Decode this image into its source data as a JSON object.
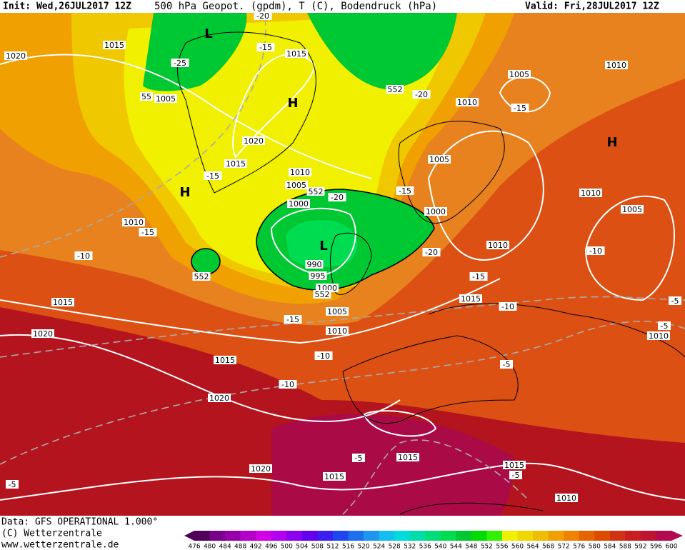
{
  "header": {
    "init": "Init: Wed,26JUL2017 12Z",
    "title": "500 hPa Geopot. (gpdm), T (C), Bodendruck (hPa)",
    "valid": "Valid: Fri,28JUL2017 12Z"
  },
  "map": {
    "labels": [
      "1020",
      "1015",
      "1015",
      "-20",
      "-15",
      "-25",
      "L",
      "55",
      "1005",
      "H",
      "1005",
      "1010",
      "1010",
      "-15",
      "-20",
      "552",
      "H",
      "1020",
      "1015",
      "-15",
      "1010",
      "1005",
      "552",
      "-20",
      "1000",
      "-15",
      "1005",
      "1010",
      "1005",
      "1000",
      "H",
      "1010",
      "-15",
      "-10",
      "L",
      "990",
      "995",
      "1000",
      "552",
      "-20",
      "1010",
      "-10",
      "552",
      "-15",
      "1015",
      "1015",
      "-10",
      "-5",
      "1005",
      "-15",
      "1010",
      "-5",
      "1020",
      "1010",
      "-10",
      "1015",
      "-5",
      "-10",
      "1020",
      "-5",
      "1015",
      "1015",
      "-5",
      "1020",
      "1015",
      "-5",
      "1010"
    ]
  },
  "footer": {
    "data": "Data: GFS OPERATIONAL 1.000°",
    "copyright": "(C) Wetterzentrale",
    "url": "www.wetterzentrale.de"
  },
  "colorbar": {
    "ticks": [
      476,
      480,
      484,
      488,
      492,
      496,
      500,
      504,
      508,
      512,
      516,
      520,
      524,
      528,
      532,
      536,
      540,
      544,
      548,
      552,
      556,
      560,
      564,
      568,
      572,
      576,
      580,
      584,
      588,
      592,
      596,
      600
    ],
    "colors": [
      "#50005a",
      "#78008c",
      "#9600aa",
      "#b400c8",
      "#d200e6",
      "#b400f0",
      "#8c00f0",
      "#6400f0",
      "#3c1ef0",
      "#1e46f0",
      "#1e6ef0",
      "#1e96f0",
      "#14bef0",
      "#00dcdc",
      "#00dcaa",
      "#00dc78",
      "#00dc50",
      "#00c832",
      "#00dc00",
      "#32f000",
      "#f0f000",
      "#f0d700",
      "#f0be00",
      "#f0a000",
      "#f08200",
      "#e66400",
      "#dc4b00",
      "#d23214",
      "#c81e1e",
      "#be1432",
      "#b40a50"
    ]
  }
}
